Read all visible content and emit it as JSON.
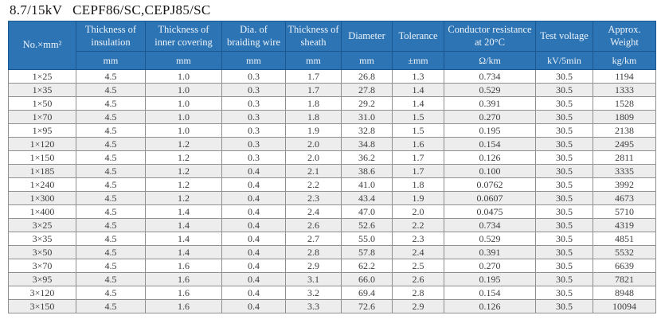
{
  "title": {
    "voltage": "8.7/15kV",
    "model": "CEPF86/SC,CEPJ85/SC"
  },
  "table": {
    "columns": [
      {
        "label": "No.×mm²",
        "unit": ""
      },
      {
        "label": "Thickness of insulation",
        "unit": "mm"
      },
      {
        "label": "Thickness of inner covering",
        "unit": "mm"
      },
      {
        "label": "Dia. of braiding wire",
        "unit": "mm"
      },
      {
        "label": "Thickness of sheath",
        "unit": "mm"
      },
      {
        "label": "Diameter",
        "unit": "mm"
      },
      {
        "label": "Tolerance",
        "unit": "±mm"
      },
      {
        "label": "Conductor resistance at 20°C",
        "unit": "Ω/km"
      },
      {
        "label": "Test voltage",
        "unit": "kV/5min"
      },
      {
        "label": "Approx. Weight",
        "unit": "kg/km"
      }
    ],
    "rows": [
      [
        "1×25",
        "4.5",
        "1.0",
        "0.3",
        "1.7",
        "26.8",
        "1.3",
        "0.734",
        "30.5",
        "1194"
      ],
      [
        "1×35",
        "4.5",
        "1.0",
        "0.3",
        "1.7",
        "27.8",
        "1.4",
        "0.529",
        "30.5",
        "1333"
      ],
      [
        "1×50",
        "4.5",
        "1.0",
        "0.3",
        "1.8",
        "29.2",
        "1.4",
        "0.391",
        "30.5",
        "1528"
      ],
      [
        "1×70",
        "4.5",
        "1.0",
        "0.3",
        "1.8",
        "31.0",
        "1.5",
        "0.270",
        "30.5",
        "1809"
      ],
      [
        "1×95",
        "4.5",
        "1.0",
        "0.3",
        "1.9",
        "32.8",
        "1.5",
        "0.195",
        "30.5",
        "2138"
      ],
      [
        "1×120",
        "4.5",
        "1.2",
        "0.3",
        "2.0",
        "34.8",
        "1.6",
        "0.154",
        "30.5",
        "2495"
      ],
      [
        "1×150",
        "4.5",
        "1.2",
        "0.3",
        "2.0",
        "36.2",
        "1.7",
        "0.126",
        "30.5",
        "2811"
      ],
      [
        "1×185",
        "4.5",
        "1.2",
        "0.4",
        "2.1",
        "38.6",
        "1.7",
        "0.100",
        "30.5",
        "3335"
      ],
      [
        "1×240",
        "4.5",
        "1.2",
        "0.4",
        "2.2",
        "41.0",
        "1.8",
        "0.0762",
        "30.5",
        "3992"
      ],
      [
        "1×300",
        "4.5",
        "1.2",
        "0.4",
        "2.3",
        "43.4",
        "1.9",
        "0.0607",
        "30.5",
        "4673"
      ],
      [
        "1×400",
        "4.5",
        "1.4",
        "0.4",
        "2.4",
        "47.0",
        "2.0",
        "0.0475",
        "30.5",
        "5710"
      ],
      [
        "3×25",
        "4.5",
        "1.4",
        "0.4",
        "2.6",
        "52.6",
        "2.2",
        "0.734",
        "30.5",
        "4319"
      ],
      [
        "3×35",
        "4.5",
        "1.4",
        "0.4",
        "2.7",
        "55.0",
        "2.3",
        "0.529",
        "30.5",
        "4851"
      ],
      [
        "3×50",
        "4.5",
        "1.4",
        "0.4",
        "2.8",
        "57.8",
        "2.4",
        "0.391",
        "30.5",
        "5532"
      ],
      [
        "3×70",
        "4.5",
        "1.6",
        "0.4",
        "2.9",
        "62.2",
        "2.5",
        "0.270",
        "30.5",
        "6639"
      ],
      [
        "3×95",
        "4.5",
        "1.6",
        "0.4",
        "3.1",
        "66.0",
        "2.6",
        "0.195",
        "30.5",
        "7821"
      ],
      [
        "3×120",
        "4.5",
        "1.6",
        "0.4",
        "3.2",
        "69.4",
        "2.8",
        "0.154",
        "30.5",
        "8948"
      ],
      [
        "3×150",
        "4.5",
        "1.6",
        "0.4",
        "3.3",
        "72.6",
        "2.9",
        "0.126",
        "30.5",
        "10094"
      ]
    ]
  },
  "colors": {
    "header_bg": "#2d74b5",
    "header_border": "#1b5791",
    "header_text": "#eef4fa",
    "body_border": "#8f8f8f",
    "row_alt": "#ededed",
    "text": "#3d3d3d"
  }
}
